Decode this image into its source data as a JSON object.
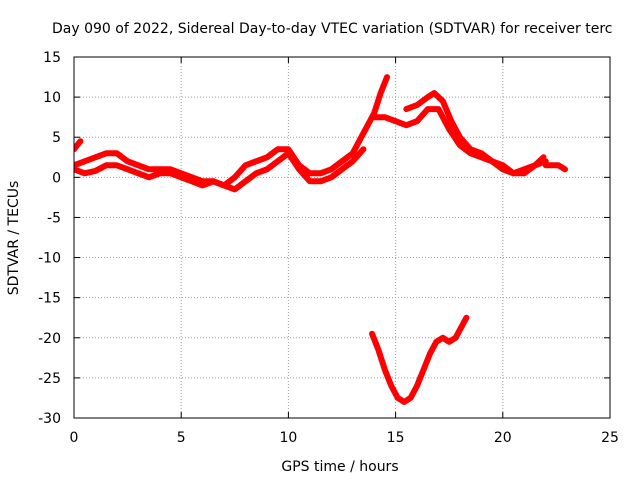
{
  "chart_data": {
    "type": "line",
    "title": "Day 090 of 2022, Sidereal Day-to-day VTEC variation (SDTVAR) for receiver terc",
    "xlabel": "GPS time / hours",
    "ylabel": "SDTVAR / TECUs",
    "xlim": [
      0,
      25
    ],
    "ylim": [
      -30,
      15
    ],
    "x_ticks": [
      0,
      5,
      10,
      15,
      20,
      25
    ],
    "y_ticks": [
      15,
      10,
      5,
      0,
      -5,
      -10,
      -15,
      -20,
      -25,
      -30
    ],
    "grid": true,
    "series_color": "#ff0000",
    "series": [
      {
        "name": "main-track-upper",
        "x": [
          0.0,
          0.5,
          1.0,
          1.5,
          2.0,
          2.5,
          3.0,
          3.5,
          4.0,
          4.5,
          5.0,
          5.5,
          6.0,
          6.5,
          7.0,
          7.5,
          8.0,
          8.5,
          9.0,
          9.5,
          10.0,
          10.5,
          11.0,
          11.5,
          12.0,
          12.5,
          13.0,
          13.5,
          14.0,
          14.3,
          14.6
        ],
        "y": [
          1.5,
          2.0,
          2.5,
          3.0,
          3.0,
          2.0,
          1.5,
          1.0,
          1.0,
          1.0,
          0.5,
          0.0,
          -0.5,
          -0.5,
          -1.0,
          0.0,
          1.5,
          2.0,
          2.5,
          3.5,
          3.5,
          1.5,
          0.5,
          0.5,
          1.0,
          2.0,
          3.0,
          5.5,
          8.0,
          10.5,
          12.5
        ]
      },
      {
        "name": "main-track-lower",
        "x": [
          0.0,
          0.5,
          1.0,
          1.5,
          2.0,
          2.5,
          3.0,
          3.5,
          4.0,
          4.5,
          5.0,
          5.5,
          6.0,
          6.5,
          7.0,
          7.5,
          8.0,
          8.5,
          9.0,
          9.5,
          10.0,
          10.5,
          11.0,
          11.5,
          12.0,
          12.5,
          13.0,
          13.5
        ],
        "y": [
          1.0,
          0.5,
          0.8,
          1.5,
          1.5,
          1.0,
          0.5,
          0.0,
          0.5,
          0.5,
          0.0,
          -0.5,
          -1.0,
          -0.5,
          -1.0,
          -1.5,
          -0.5,
          0.5,
          1.0,
          2.0,
          3.0,
          1.0,
          -0.5,
          -0.5,
          0.0,
          1.0,
          2.0,
          3.5
        ]
      },
      {
        "name": "peak-track",
        "x": [
          14.0,
          14.5,
          15.0,
          15.5,
          16.0,
          16.5,
          17.0,
          17.5,
          18.0,
          18.5,
          19.0,
          19.5,
          20.0,
          20.5,
          21.0,
          21.5,
          22.0
        ],
        "y": [
          7.5,
          7.5,
          7.0,
          6.5,
          7.0,
          8.5,
          8.5,
          6.0,
          4.0,
          3.0,
          2.5,
          2.0,
          1.0,
          0.5,
          1.0,
          1.5,
          2.0
        ]
      },
      {
        "name": "upper-arc",
        "x": [
          15.5,
          16.0,
          16.5,
          16.8,
          17.2,
          17.6,
          18.0,
          18.5,
          19.0,
          19.5,
          20.0,
          20.5,
          21.0,
          21.5,
          21.9
        ],
        "y": [
          8.5,
          9.0,
          10.0,
          10.5,
          9.5,
          7.0,
          5.0,
          3.5,
          3.0,
          2.0,
          1.5,
          0.5,
          0.5,
          1.5,
          2.5
        ]
      },
      {
        "name": "tail-segment",
        "x": [
          22.0,
          22.3,
          22.6,
          22.9
        ],
        "y": [
          1.5,
          1.5,
          1.5,
          1.0
        ]
      },
      {
        "name": "start-segment",
        "x": [
          0.0,
          0.15,
          0.3
        ],
        "y": [
          3.5,
          4.0,
          4.5
        ]
      },
      {
        "name": "negative-arc",
        "x": [
          13.9,
          14.2,
          14.5,
          14.8,
          15.1,
          15.4,
          15.7,
          16.0,
          16.3,
          16.6,
          16.9,
          17.2,
          17.5,
          17.8,
          18.0,
          18.3
        ],
        "y": [
          -19.5,
          -21.5,
          -24.0,
          -26.0,
          -27.5,
          -28.0,
          -27.5,
          -26.0,
          -24.0,
          -22.0,
          -20.5,
          -20.0,
          -20.5,
          -20.0,
          -19.0,
          -17.5
        ]
      }
    ]
  }
}
